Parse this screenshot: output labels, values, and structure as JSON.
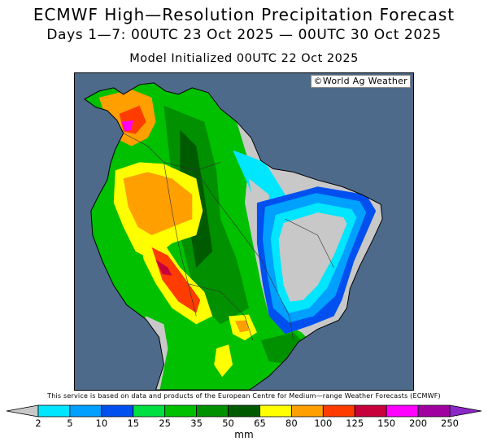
{
  "header": {
    "title": "ECMWF High—Resolution Precipitation Forecast",
    "period": "Days 1—7: 00UTC 23 Oct 2025 — 00UTC 30 Oct 2025",
    "initialized": "Model Initialized 00UTC 22 Oct 2025"
  },
  "map": {
    "credit": "©World Ag Weather",
    "region": "South America",
    "ocean_color": "#4d6a8a",
    "dry_land_color": "#c8c8c8"
  },
  "disclaimer": "This service is based on data and products of the European Centre for Medium—range Weather Forecasts (ECMWF)",
  "legend": {
    "unit": "mm",
    "ticks": [
      "2",
      "5",
      "10",
      "15",
      "25",
      "35",
      "50",
      "65",
      "80",
      "100",
      "125",
      "150",
      "200",
      "250"
    ],
    "colors": [
      "#00e6ff",
      "#00a0ff",
      "#0050f0",
      "#00e040",
      "#00c000",
      "#009000",
      "#005a00",
      "#ffff00",
      "#ff9f00",
      "#ff3c00",
      "#c8003c",
      "#ff00ff",
      "#a000a0"
    ],
    "below_color": "#c8c8c8",
    "above_color": "#8c28c8"
  }
}
